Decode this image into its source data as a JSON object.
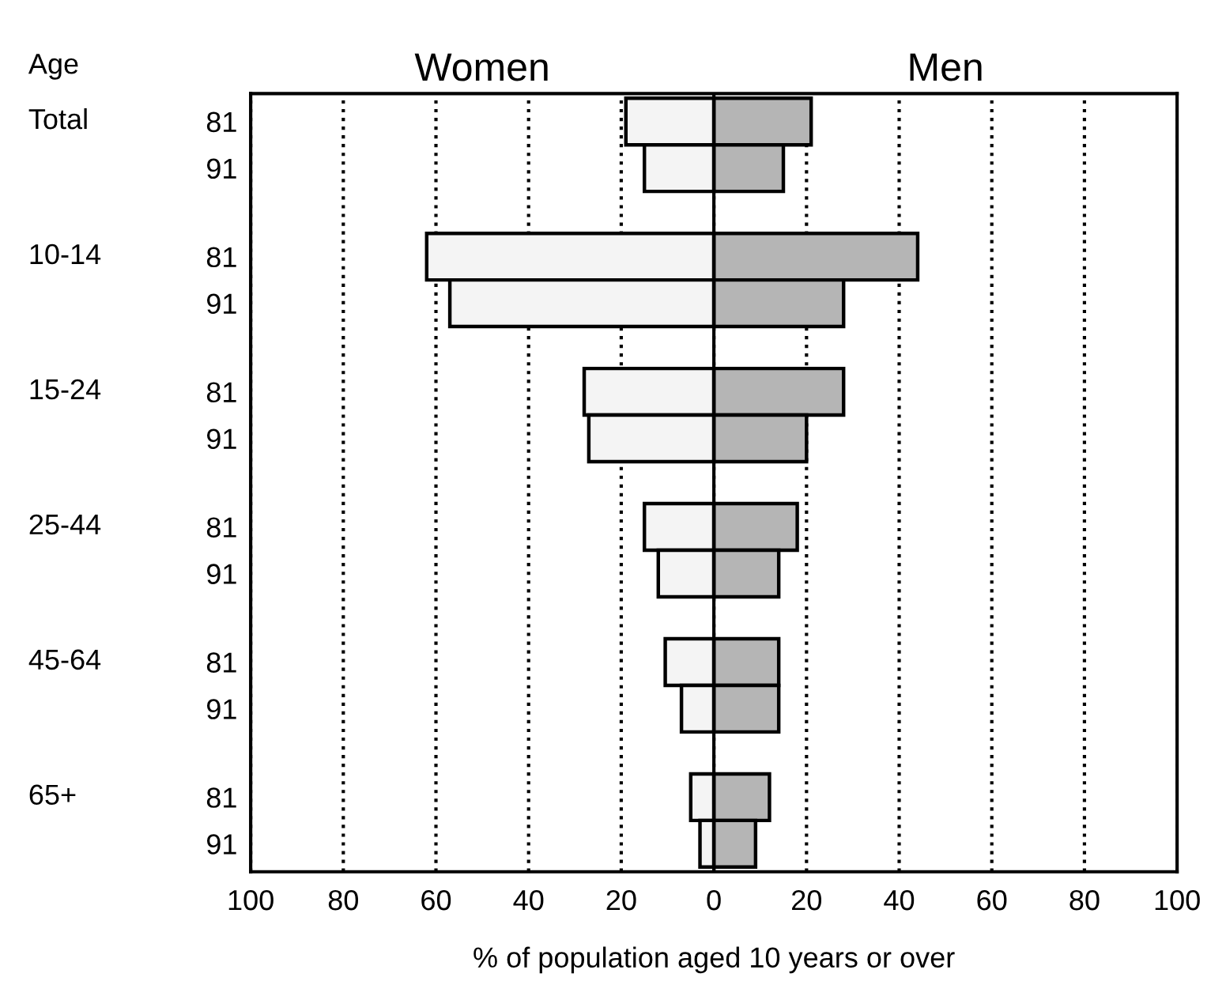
{
  "chart_data": {
    "type": "bar",
    "orientation": "horizontal",
    "stacked": true,
    "ylabel": "Age",
    "xlabel": "% of population aged 10 years or over",
    "categories": [
      "81",
      "91",
      "81",
      "91",
      "81",
      "91",
      "81",
      "91",
      "81",
      "91",
      "81",
      "91"
    ],
    "annotations": [
      "Total",
      "10-14",
      "15-24",
      "25-44",
      "45-64",
      "65+"
    ],
    "series": [
      {
        "name": "Women",
        "color": "#f4f4f4",
        "values": [
          -19,
          -15,
          -62,
          -57,
          -28,
          -27,
          -15,
          -12,
          -10.5,
          -7,
          -5,
          -3
        ]
      },
      {
        "name": "Men",
        "color": "#b5b5b5",
        "values": [
          21,
          15,
          44,
          28,
          28,
          20,
          18,
          14,
          14,
          14,
          12,
          9
        ]
      }
    ],
    "xlim": [
      -100,
      100
    ],
    "xticks": [
      {
        "value": -100,
        "label": "100"
      },
      {
        "value": -80,
        "label": "80"
      },
      {
        "value": -60,
        "label": "60"
      },
      {
        "value": -40,
        "label": "40"
      },
      {
        "value": -20,
        "label": "20"
      },
      0,
      20,
      40,
      60,
      80,
      100
    ],
    "grid": "x",
    "line_style": "dotted",
    "legend": false
  }
}
